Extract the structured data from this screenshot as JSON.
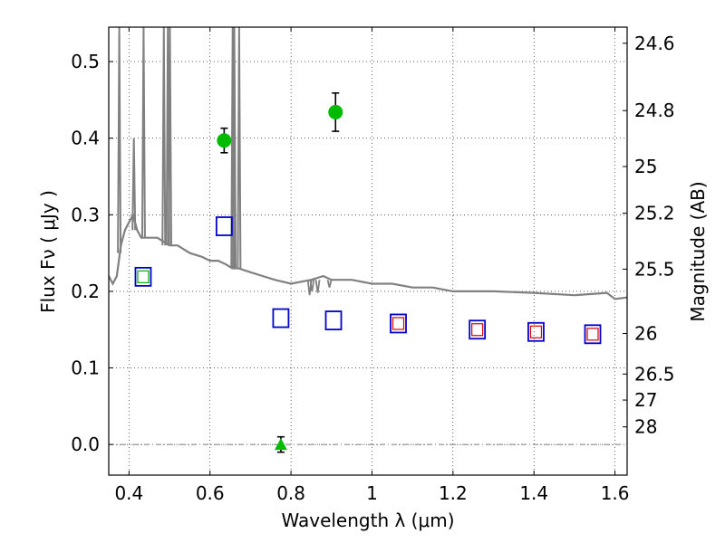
{
  "chart_data": {
    "type": "scatter",
    "xlabel": "Wavelength  λ (μm)",
    "ylabel": "Flux  Fν  ( μJy )",
    "y2label": "Magnitude (AB)",
    "xlim": [
      0.35,
      1.63
    ],
    "ylim": [
      -0.04,
      0.545
    ],
    "grid": true,
    "x_ticks": [
      {
        "value": 0.4,
        "label": "0.4"
      },
      {
        "value": 0.6,
        "label": "0.6"
      },
      {
        "value": 0.8,
        "label": "0.8"
      },
      {
        "value": 1.0,
        "label": "1"
      },
      {
        "value": 1.2,
        "label": "1.2"
      },
      {
        "value": 1.4,
        "label": "1.4"
      },
      {
        "value": 1.6,
        "label": "1.6"
      }
    ],
    "y_ticks": [
      {
        "value": 0.0,
        "label": "0.0"
      },
      {
        "value": 0.1,
        "label": "0.1"
      },
      {
        "value": 0.2,
        "label": "0.2"
      },
      {
        "value": 0.3,
        "label": "0.3"
      },
      {
        "value": 0.4,
        "label": "0.4"
      },
      {
        "value": 0.5,
        "label": "0.5"
      }
    ],
    "y2_ticks": [
      {
        "flux": 0.524,
        "label": "24.6"
      },
      {
        "flux": 0.436,
        "label": "24.8"
      },
      {
        "flux": 0.363,
        "label": "25"
      },
      {
        "flux": 0.302,
        "label": "25.2"
      },
      {
        "flux": 0.229,
        "label": "25.5"
      },
      {
        "flux": 0.145,
        "label": "26"
      },
      {
        "flux": 0.092,
        "label": "26.5"
      },
      {
        "flux": 0.058,
        "label": "27"
      },
      {
        "flux": 0.023,
        "label": "28"
      }
    ],
    "zero_line": 0.0,
    "template_spectrum": {
      "color": "#808080",
      "points": [
        [
          0.35,
          0.22
        ],
        [
          0.36,
          0.21
        ],
        [
          0.37,
          0.22
        ],
        [
          0.38,
          0.26
        ],
        [
          0.39,
          0.28
        ],
        [
          0.4,
          0.29
        ],
        [
          0.41,
          0.3
        ],
        [
          0.42,
          0.28
        ],
        [
          0.43,
          0.27
        ],
        [
          0.45,
          0.27
        ],
        [
          0.47,
          0.27
        ],
        [
          0.5,
          0.26
        ],
        [
          0.52,
          0.26
        ],
        [
          0.55,
          0.25
        ],
        [
          0.58,
          0.245
        ],
        [
          0.6,
          0.24
        ],
        [
          0.62,
          0.24
        ],
        [
          0.64,
          0.235
        ],
        [
          0.655,
          0.23
        ],
        [
          0.67,
          0.23
        ],
        [
          0.7,
          0.225
        ],
        [
          0.73,
          0.22
        ],
        [
          0.76,
          0.215
        ],
        [
          0.8,
          0.21
        ],
        [
          0.85,
          0.215
        ],
        [
          0.88,
          0.22
        ],
        [
          0.9,
          0.215
        ],
        [
          0.95,
          0.215
        ],
        [
          1.0,
          0.21
        ],
        [
          1.05,
          0.21
        ],
        [
          1.1,
          0.205
        ],
        [
          1.15,
          0.205
        ],
        [
          1.2,
          0.2
        ],
        [
          1.3,
          0.2
        ],
        [
          1.4,
          0.198
        ],
        [
          1.5,
          0.195
        ],
        [
          1.58,
          0.198
        ],
        [
          1.6,
          0.19
        ],
        [
          1.63,
          0.192
        ]
      ],
      "lines": [
        {
          "x": 0.376,
          "top": 0.545,
          "base": 0.25
        },
        {
          "x": 0.412,
          "top": 0.4,
          "base": 0.28
        },
        {
          "x": 0.436,
          "top": 0.545,
          "base": 0.27
        },
        {
          "x": 0.486,
          "top": 0.545,
          "base": 0.26
        },
        {
          "x": 0.496,
          "top": 0.545,
          "base": 0.26
        },
        {
          "x": 0.501,
          "top": 0.545,
          "base": 0.26
        },
        {
          "x": 0.656,
          "top": 0.545,
          "base": 0.23
        },
        {
          "x": 0.66,
          "top": 0.545,
          "base": 0.23
        },
        {
          "x": 0.672,
          "top": 0.545,
          "base": 0.23
        }
      ],
      "absorption": [
        {
          "x": 0.846,
          "depth": 0.195
        },
        {
          "x": 0.852,
          "depth": 0.2
        },
        {
          "x": 0.866,
          "depth": 0.198
        },
        {
          "x": 0.895,
          "depth": 0.205
        }
      ]
    },
    "series": [
      {
        "marker": "circle",
        "color": "#00bb00",
        "points": [
          {
            "x": 0.635,
            "y": 0.397,
            "err": 0.016
          },
          {
            "x": 0.91,
            "y": 0.434,
            "err": 0.025
          }
        ]
      },
      {
        "marker": "triangle",
        "color": "#00bb00",
        "points": [
          {
            "x": 0.775,
            "y": 0.0,
            "err": 0.01
          }
        ]
      },
      {
        "marker": "square-open",
        "color": "#0000cc",
        "points": [
          {
            "x": 0.435,
            "y": 0.219
          },
          {
            "x": 0.635,
            "y": 0.285
          },
          {
            "x": 0.775,
            "y": 0.165
          },
          {
            "x": 0.905,
            "y": 0.162
          },
          {
            "x": 1.065,
            "y": 0.158
          },
          {
            "x": 1.26,
            "y": 0.15
          },
          {
            "x": 1.405,
            "y": 0.147
          },
          {
            "x": 1.545,
            "y": 0.144
          }
        ]
      },
      {
        "marker": "square-open-small",
        "color": "#00aa00",
        "points": [
          {
            "x": 0.435,
            "y": 0.219
          }
        ]
      },
      {
        "marker": "square-open-small",
        "color": "#dd0000",
        "points": [
          {
            "x": 1.065,
            "y": 0.158
          },
          {
            "x": 1.26,
            "y": 0.15
          },
          {
            "x": 1.405,
            "y": 0.147
          },
          {
            "x": 1.545,
            "y": 0.144
          }
        ]
      }
    ]
  }
}
